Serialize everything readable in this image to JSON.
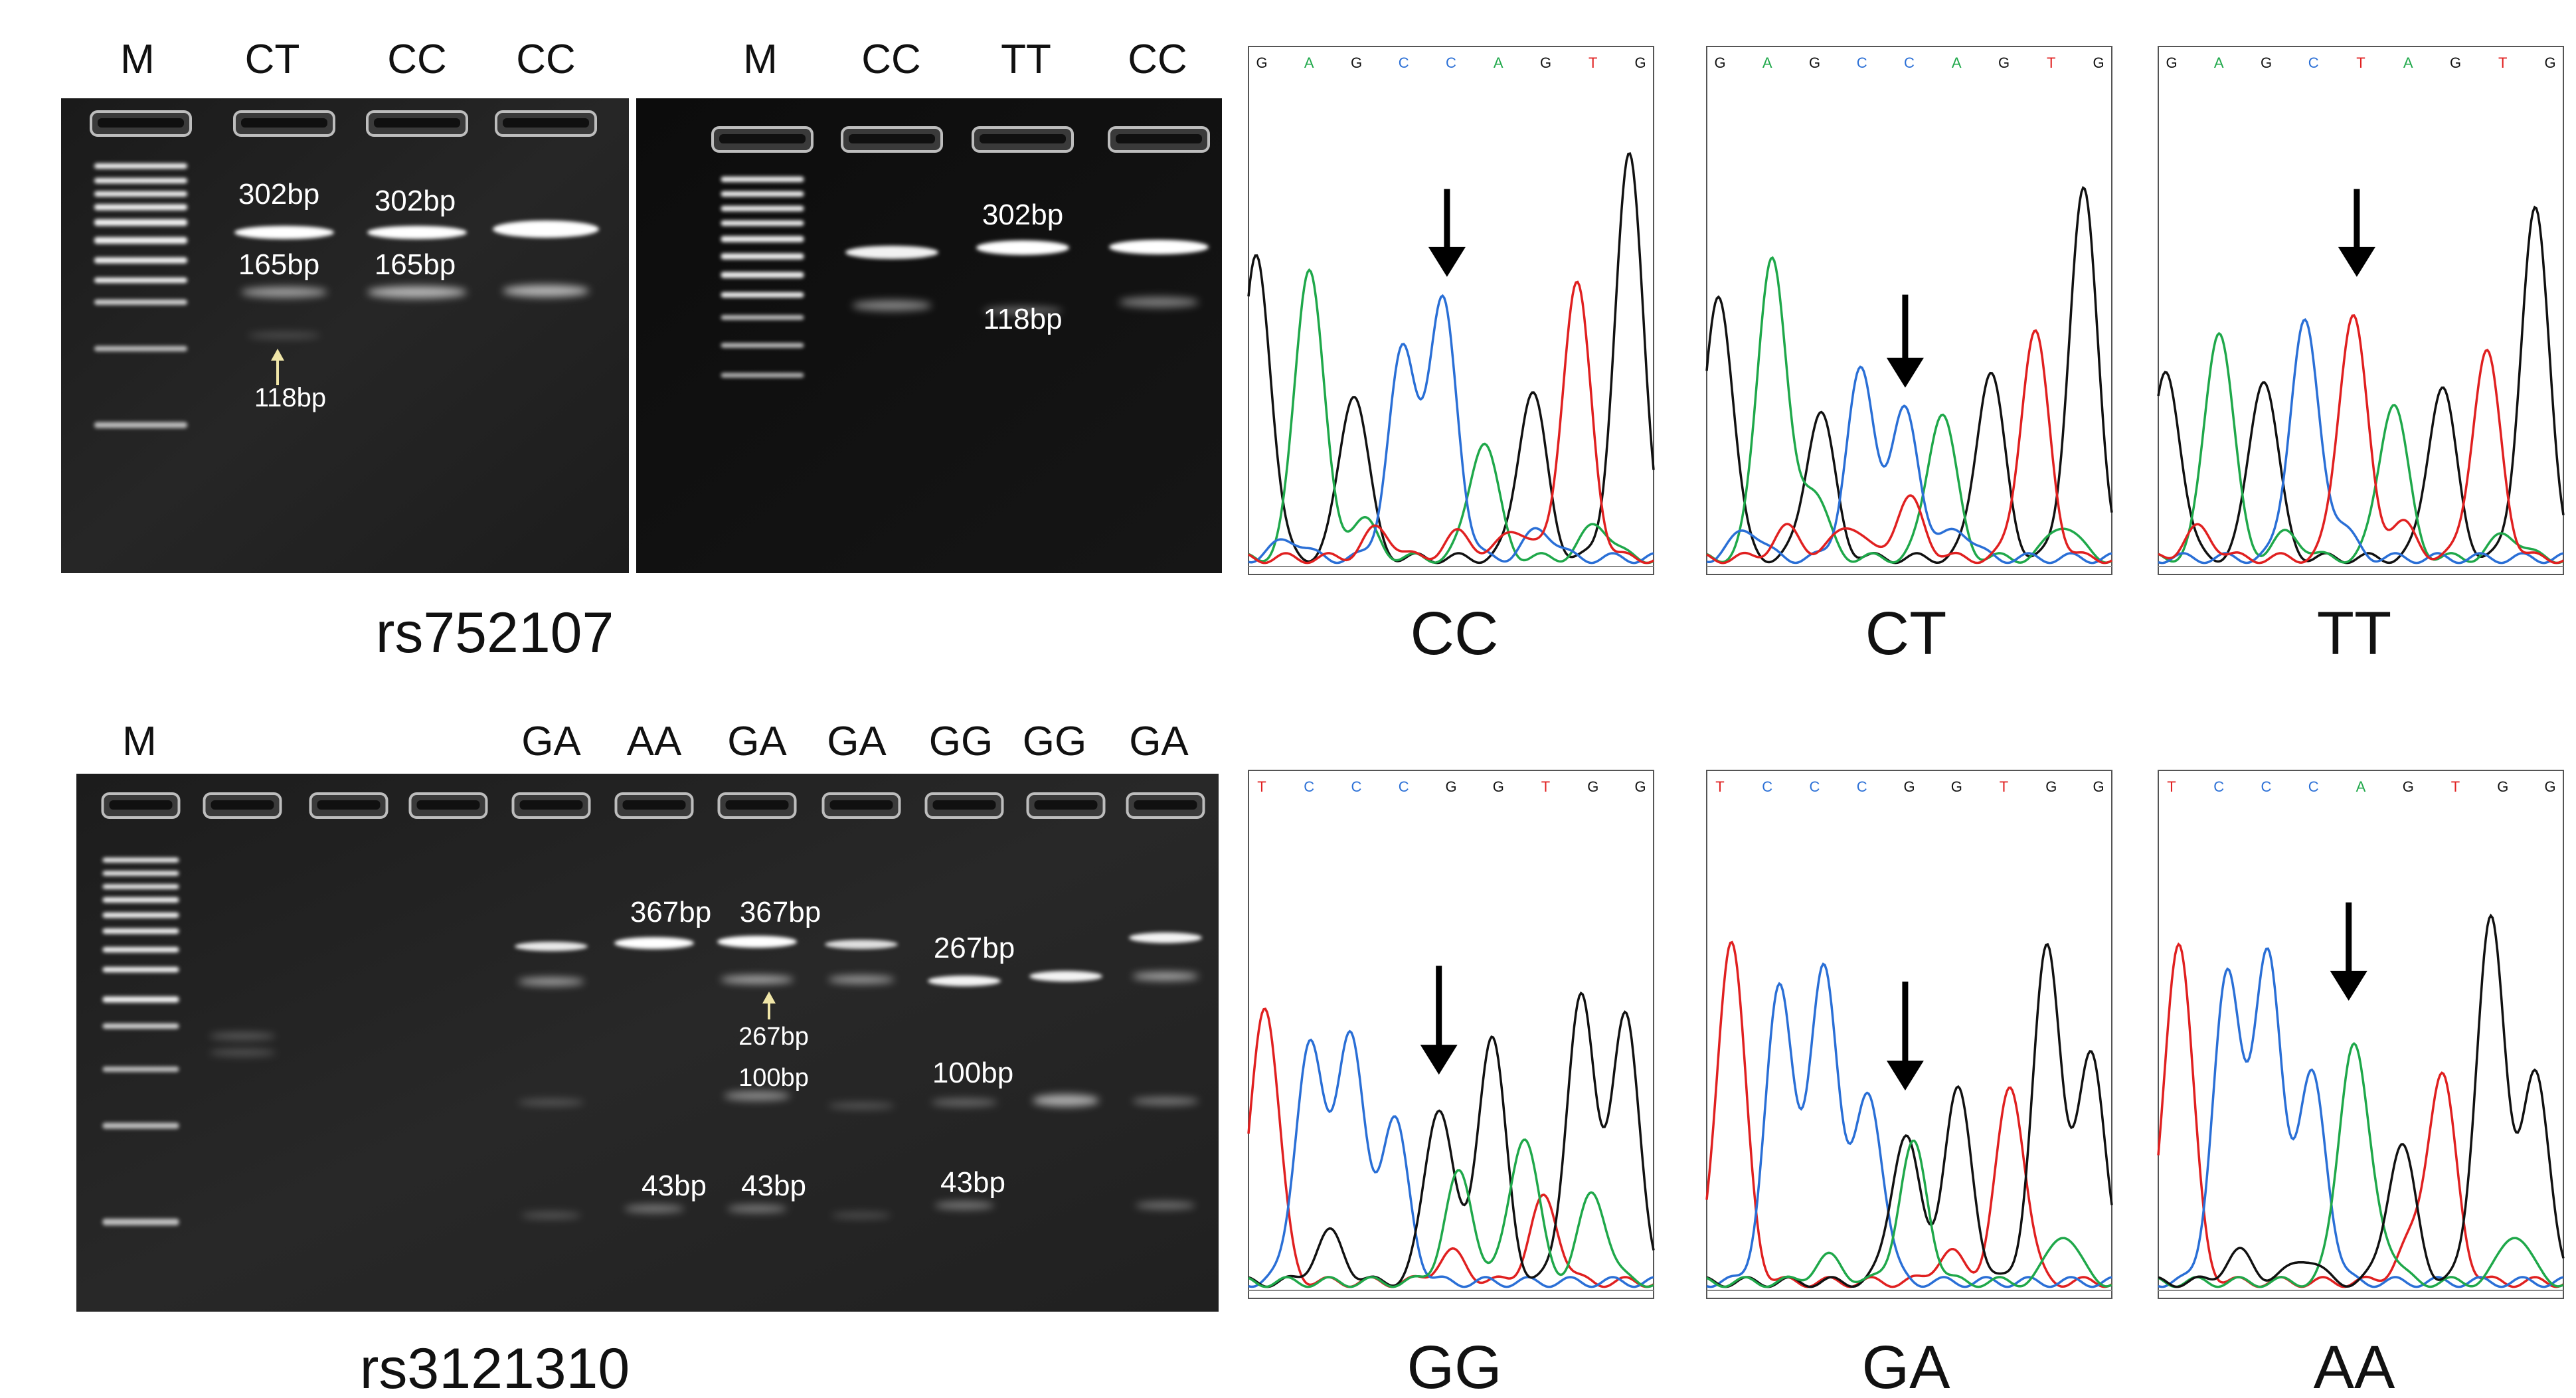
{
  "panels": {
    "rs752107": {
      "title": "rs752107",
      "gel1": {
        "lanes": [
          "M",
          "CT",
          "CC",
          "CC"
        ],
        "bands": [
          "302bp",
          "302bp",
          "165bp",
          "165bp",
          "118bp"
        ]
      },
      "gel2": {
        "lanes": [
          "M",
          "CC",
          "TT",
          "CC"
        ],
        "bands": [
          "302bp",
          "118bp"
        ]
      },
      "chromatograms": [
        {
          "genotype": "CC",
          "sequence": [
            "G",
            "A",
            "G",
            "C",
            "C",
            "A",
            "G",
            "T",
            "G"
          ]
        },
        {
          "genotype": "CT",
          "sequence": [
            "G",
            "A",
            "G",
            "C",
            "C",
            "A",
            "G",
            "T",
            "G"
          ]
        },
        {
          "genotype": "TT",
          "sequence": [
            "G",
            "A",
            "G",
            "C",
            "T",
            "A",
            "G",
            "T",
            "G"
          ]
        }
      ]
    },
    "rs3121310": {
      "title": "rs3121310",
      "gel": {
        "lanes": [
          "M",
          "",
          "",
          "",
          "GA",
          "AA",
          "GA",
          "GA",
          "GG",
          "GG",
          "GA"
        ],
        "bands": [
          "367bp",
          "367bp",
          "267bp",
          "267bp",
          "100bp",
          "100bp",
          "43bp",
          "43bp",
          "43bp"
        ]
      },
      "chromatograms": [
        {
          "genotype": "GG",
          "sequence": [
            "T",
            "C",
            "C",
            "C",
            "G",
            "G",
            "T",
            "G",
            "G"
          ]
        },
        {
          "genotype": "GA",
          "sequence": [
            "T",
            "C",
            "C",
            "C",
            "G",
            "G",
            "T",
            "G",
            "G"
          ]
        },
        {
          "genotype": "AA",
          "sequence": [
            "T",
            "C",
            "C",
            "C",
            "A",
            "G",
            "T",
            "G",
            "G"
          ]
        }
      ]
    }
  },
  "base_colors": {
    "A": "#1fa84a",
    "C": "#2a6fd6",
    "G": "#111111",
    "T": "#e02020"
  },
  "arrow_color": "#f0e6a8"
}
